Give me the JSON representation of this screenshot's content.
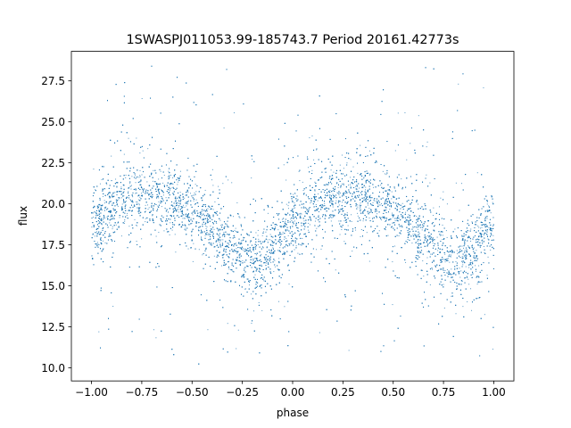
{
  "chart_data": {
    "type": "scatter",
    "title": "1SWASPJ011053.99-185743.7 Period 20161.42773s",
    "xlabel": "phase",
    "ylabel": "flux",
    "xlim": [
      -1.1,
      1.1
    ],
    "ylim": [
      9.2,
      29.3
    ],
    "xticks": [
      -1.0,
      -0.75,
      -0.5,
      -0.25,
      0.0,
      0.25,
      0.5,
      0.75,
      1.0
    ],
    "xtick_labels": [
      "−1.00",
      "−0.75",
      "−0.50",
      "−0.25",
      "0.00",
      "0.25",
      "0.50",
      "0.75",
      "1.00"
    ],
    "yticks": [
      10.0,
      12.5,
      15.0,
      17.5,
      20.0,
      22.5,
      25.0,
      27.5
    ],
    "ytick_labels": [
      "10.0",
      "12.5",
      "15.0",
      "17.5",
      "20.0",
      "22.5",
      "25.0",
      "27.5"
    ],
    "grid": false,
    "marker_color": "#1f77b4",
    "series": [
      {
        "phase": [
          -1.0,
          -0.9,
          -0.8,
          -0.7,
          -0.6,
          -0.5,
          -0.4,
          -0.3,
          -0.2,
          -0.1,
          0.0,
          0.1,
          0.2,
          0.3,
          0.4,
          0.5,
          0.6,
          0.7,
          0.8,
          0.9,
          1.0
        ],
        "median_flux": [
          18.6,
          19.8,
          20.4,
          20.6,
          20.2,
          19.5,
          18.6,
          17.4,
          16.6,
          17.2,
          18.6,
          19.8,
          20.4,
          20.6,
          20.2,
          19.5,
          18.6,
          17.4,
          16.6,
          17.2,
          18.6
        ]
      }
    ]
  }
}
